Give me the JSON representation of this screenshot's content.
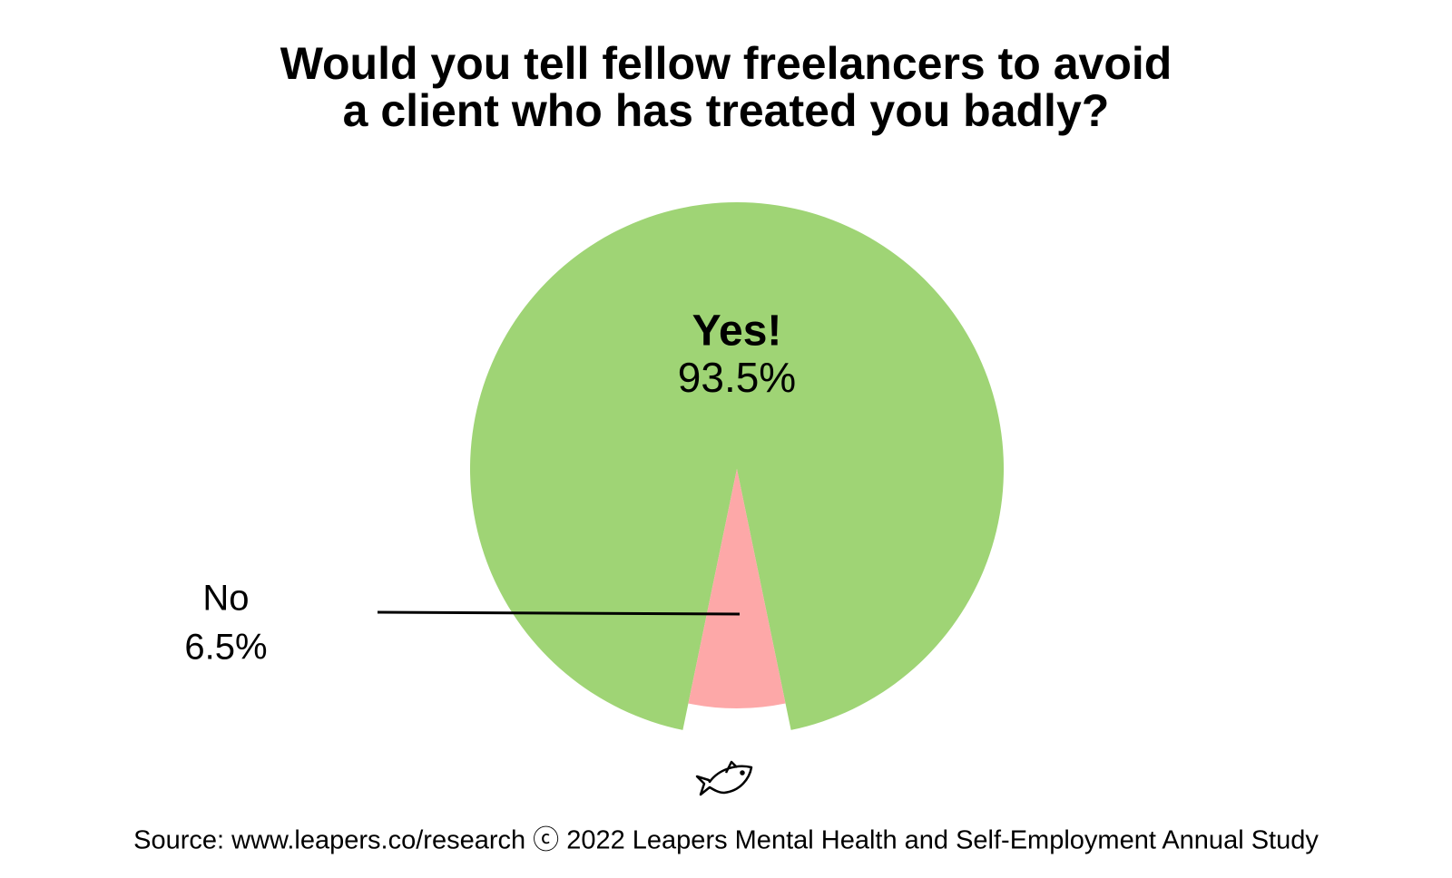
{
  "chart_data": {
    "type": "pie",
    "title": [
      "Would you tell fellow freelancers to avoid",
      "a client who has treated you badly?"
    ],
    "categories": [
      "Yes!",
      "No"
    ],
    "values": [
      93.5,
      6.5
    ],
    "value_labels": [
      "93.5%",
      "6.5%"
    ],
    "colors": [
      "#9fd475",
      "#fda8a8"
    ],
    "source": "Source: www.leapers.co/research ⓒ 2022 Leapers Mental Health and Self-Employment Annual Study"
  }
}
